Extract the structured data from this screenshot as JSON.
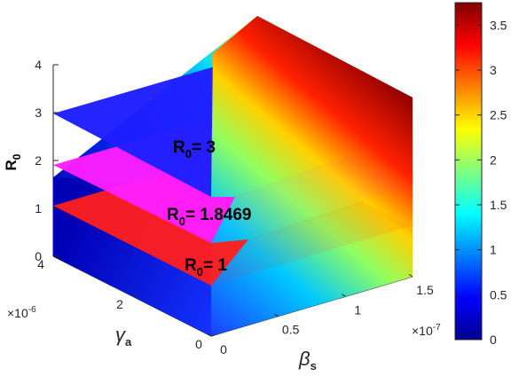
{
  "chart_data": {
    "type": "surface3d",
    "title": "",
    "xlabel": "β",
    "xlabel_sub": "s",
    "ylabel": "γ",
    "ylabel_sub": "a",
    "zlabel": "R",
    "zlabel_sub": "0",
    "x_ticks": [
      "0",
      "0.5",
      "1",
      "1.5"
    ],
    "x_multiplier": "×10",
    "x_multiplier_exp": "-7",
    "x_range": [
      0,
      1.5
    ],
    "y_ticks": [
      "0",
      "2",
      "4"
    ],
    "y_multiplier": "×10",
    "y_multiplier_exp": "-6",
    "y_range": [
      0,
      4
    ],
    "z_ticks": [
      "0",
      "1",
      "2",
      "3",
      "4"
    ],
    "z_range": [
      0,
      4
    ],
    "surface": {
      "description_values": {
        "max_R0": 3.75,
        "min_R0": 0
      }
    },
    "planes": [
      {
        "name": "R",
        "sub": "0",
        "label_suffix": "= 3",
        "value": 3,
        "color": "#1414ff"
      },
      {
        "name": "R",
        "sub": "0",
        "label_suffix": "= 1.8469",
        "value": 1.8469,
        "color": "#ff14ff"
      },
      {
        "name": "R",
        "sub": "0",
        "label_suffix": "= 1",
        "value": 1,
        "color": "#ff1414"
      }
    ],
    "colorbar": {
      "ticks": [
        "0",
        "0.5",
        "1",
        "1.5",
        "2",
        "2.5",
        "3",
        "3.5"
      ],
      "tick_values": [
        0,
        0.5,
        1,
        1.5,
        2,
        2.5,
        3,
        3.5
      ],
      "range": [
        0,
        3.75
      ],
      "colormap": "jet"
    },
    "grid": false
  }
}
